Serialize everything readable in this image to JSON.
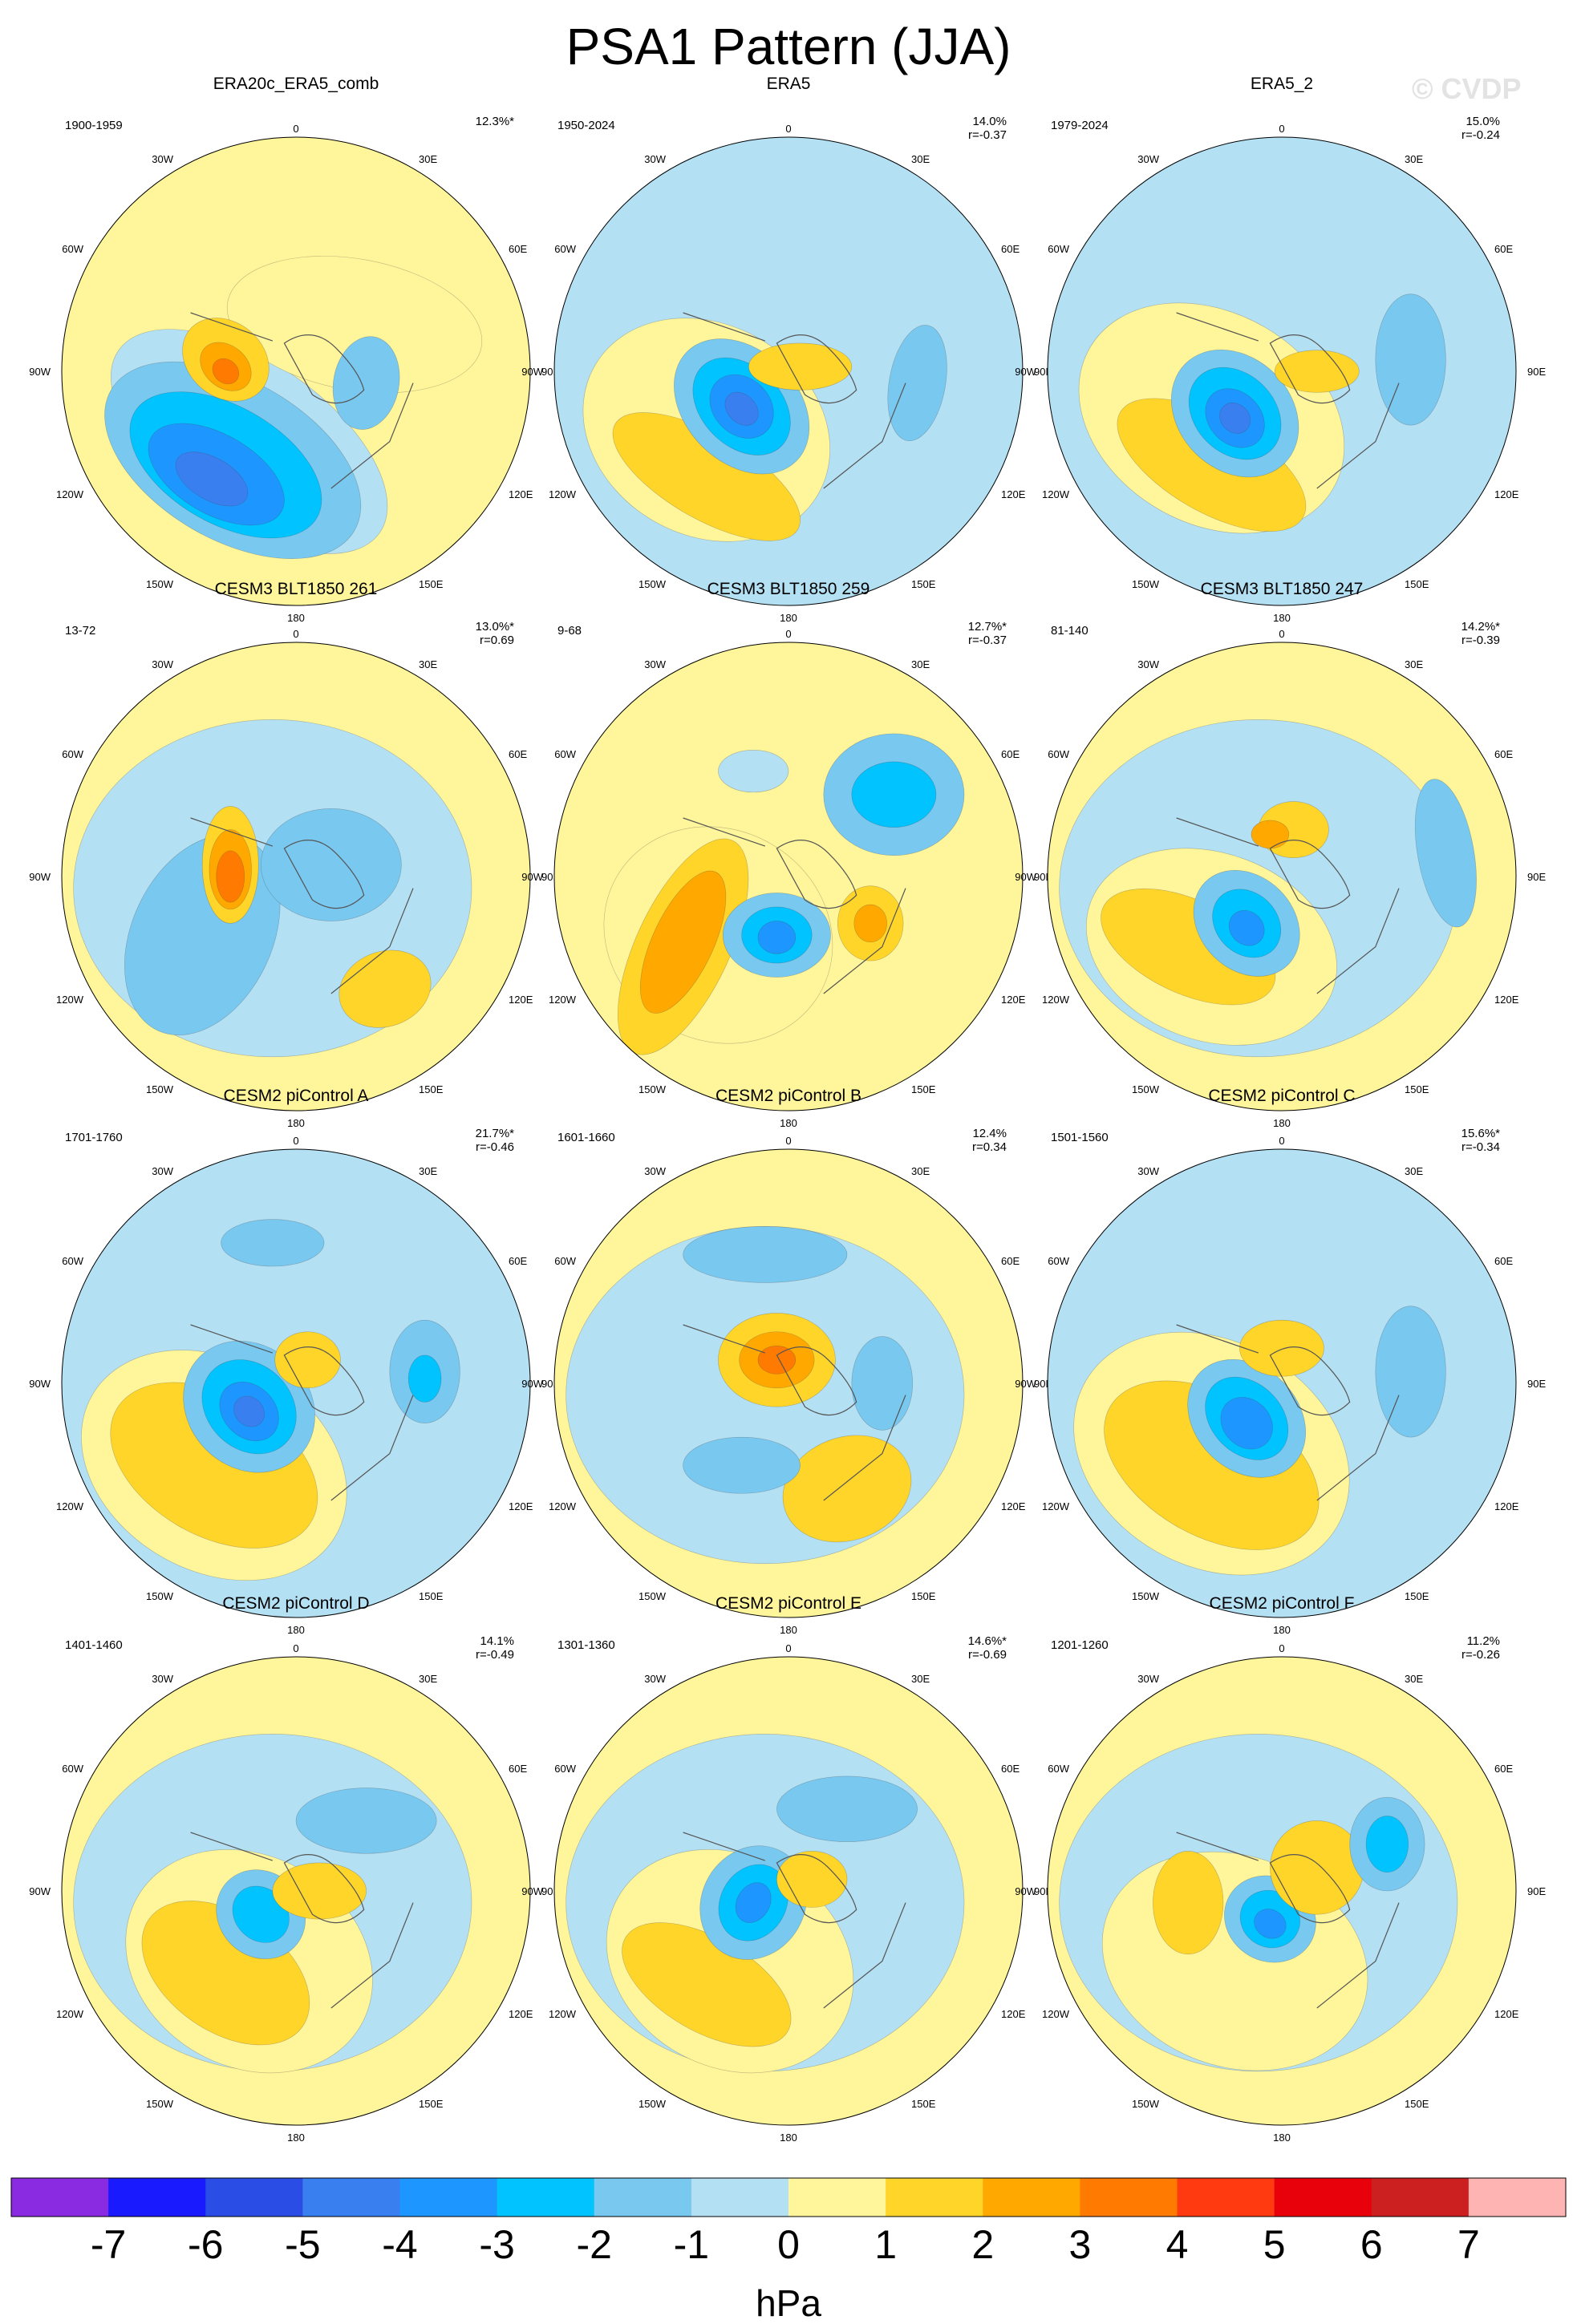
{
  "title": "PSA1 Pattern (JJA)",
  "watermark": "© CVDP",
  "unit": "hPa",
  "colorbar": {
    "ticks": [
      "-7",
      "-6",
      "-5",
      "-4",
      "-3",
      "-2",
      "-1",
      "0",
      "1",
      "2",
      "3",
      "4",
      "5",
      "6",
      "7"
    ],
    "colors": [
      "#8a2be2",
      "#1a1aff",
      "#2a4de6",
      "#3a7ff0",
      "#1e96ff",
      "#00c3ff",
      "#78c8f0",
      "#b4e0f3",
      "#fff59a",
      "#ffd52a",
      "#ffa800",
      "#ff7a00",
      "#ff3a10",
      "#e8000b",
      "#cc1f1f",
      "#ffb4b4"
    ]
  },
  "map_labels": {
    "top": "0",
    "bottom": "180",
    "left_side": [
      "30W",
      "60W",
      "90W",
      "120W",
      "150W"
    ],
    "right_side": [
      "30E",
      "60E",
      "90E",
      "120E",
      "150E"
    ]
  },
  "panels": [
    {
      "title": "ERA20c_ERA5_comb",
      "years": "1900-1959",
      "pct": "12.3%*",
      "corr": ""
    },
    {
      "title": "ERA5",
      "years": "1950-2024",
      "pct": "14.0%",
      "corr": "r=-0.37"
    },
    {
      "title": "ERA5_2",
      "years": "1979-2024",
      "pct": "15.0%",
      "corr": "r=-0.24"
    },
    {
      "title": "CESM3 BLT1850 261",
      "years": "13-72",
      "pct": "13.0%*",
      "corr": "r=0.69"
    },
    {
      "title": "CESM3 BLT1850 259",
      "years": "9-68",
      "pct": "12.7%*",
      "corr": "r=-0.37"
    },
    {
      "title": "CESM3 BLT1850 247",
      "years": "81-140",
      "pct": "14.2%*",
      "corr": "r=-0.39"
    },
    {
      "title": "CESM2 piControl A",
      "years": "1701-1760",
      "pct": "21.7%*",
      "corr": "r=-0.46"
    },
    {
      "title": "CESM2 piControl B",
      "years": "1601-1660",
      "pct": "12.4%",
      "corr": "r=0.34"
    },
    {
      "title": "CESM2 piControl C",
      "years": "1501-1560",
      "pct": "15.6%*",
      "corr": "r=-0.34"
    },
    {
      "title": "CESM2 piControl D",
      "years": "1401-1460",
      "pct": "14.1%",
      "corr": "r=-0.49"
    },
    {
      "title": "CESM2 piControl E",
      "years": "1301-1360",
      "pct": "14.6%*",
      "corr": "r=-0.69"
    },
    {
      "title": "CESM2 piControl F",
      "years": "1201-1260",
      "pct": "11.2%",
      "corr": "r=-0.26"
    }
  ]
}
